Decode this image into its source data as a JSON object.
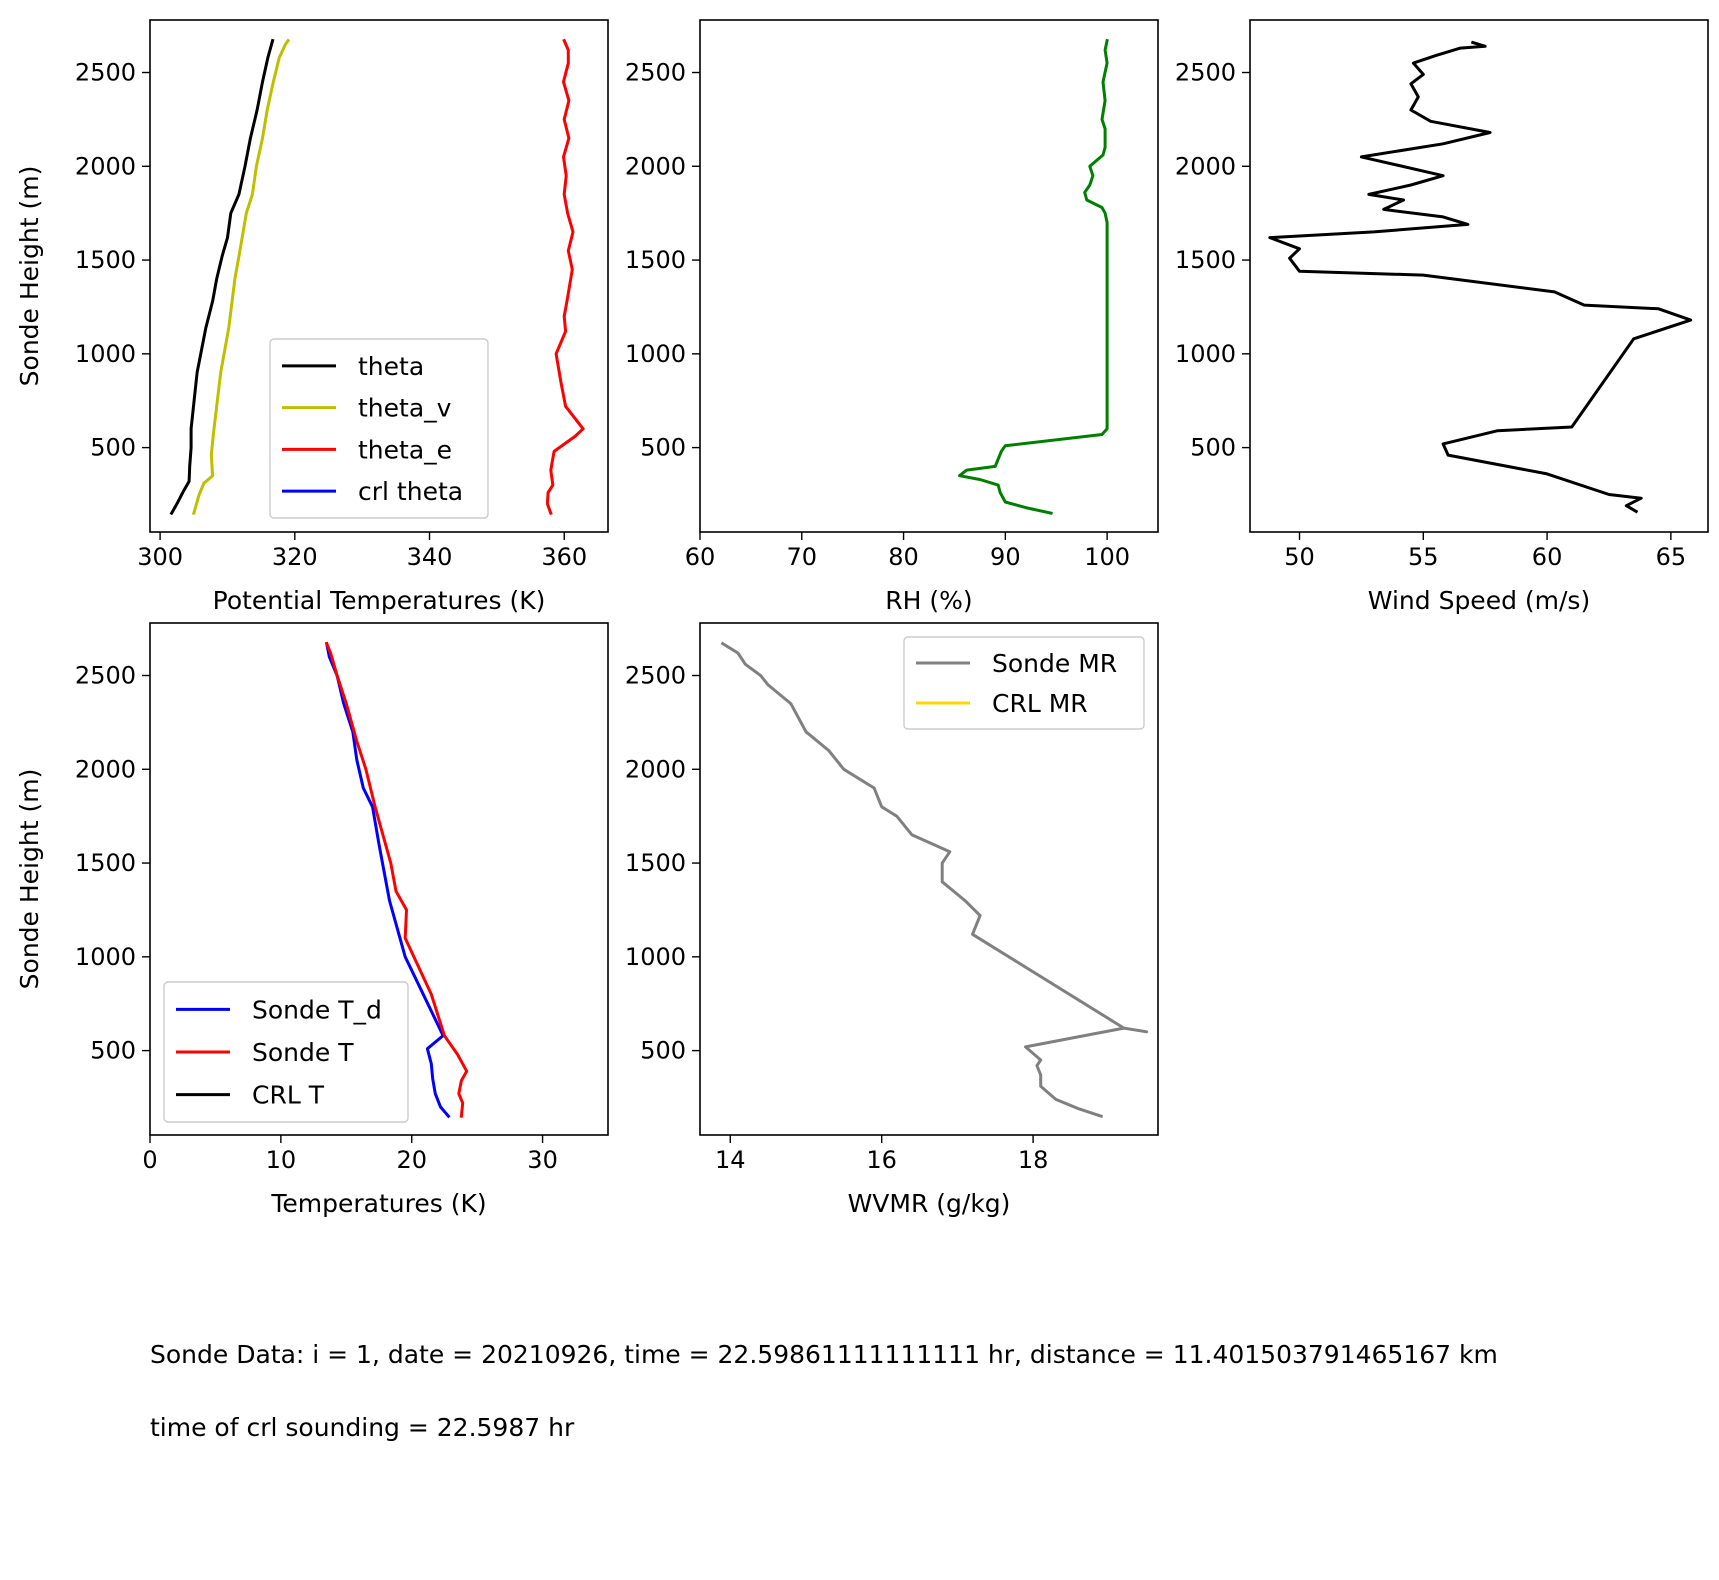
{
  "footer": {
    "line1": "Sonde Data: i = 1, date = 20210926, time = 22.59861111111111 hr, distance = 11.401503791465167 km",
    "line2": "time of crl sounding = 22.5987 hr"
  },
  "chart_data": [
    {
      "id": "potential-temperature",
      "type": "line",
      "xlabel": "Potential Temperatures (K)",
      "ylabel": "Sonde Height (m)",
      "xlim": [
        298.5,
        366.5
      ],
      "ylim": [
        50,
        2780
      ],
      "xticks": [
        300,
        320,
        340,
        360
      ],
      "yticks": [
        500,
        1000,
        1500,
        2000,
        2500
      ],
      "legend": "lower-right",
      "series": [
        {
          "name": "theta",
          "color": "#000000",
          "x": [
            301.7,
            302.5,
            303.5,
            304.3,
            304.4,
            304.6,
            304.6,
            305.5,
            306.8,
            307.8,
            308.4,
            309.2,
            310.0,
            310.5,
            311.7,
            312.6,
            313.4,
            314.4,
            315.2,
            316.0,
            316.7
          ],
          "y": [
            150,
            200,
            270,
            320,
            400,
            500,
            600,
            900,
            1140,
            1280,
            1400,
            1520,
            1620,
            1750,
            1850,
            2000,
            2150,
            2300,
            2450,
            2580,
            2670
          ]
        },
        {
          "name": "theta_v",
          "color": "#bfbf00",
          "x": [
            305.0,
            305.8,
            306.5,
            307.8,
            307.6,
            307.7,
            308.0,
            309.0,
            310.2,
            311.1,
            311.8,
            312.8,
            313.7,
            314.3,
            315.2,
            315.9,
            316.8,
            317.7,
            318.6,
            319.0
          ],
          "y": [
            150,
            250,
            310,
            350,
            460,
            500,
            600,
            900,
            1140,
            1400,
            1540,
            1750,
            1850,
            2000,
            2150,
            2300,
            2450,
            2580,
            2650,
            2670
          ]
        },
        {
          "name": "theta_e",
          "color": "#ff0000",
          "x": [
            358.0,
            357.5,
            357.6,
            358.3,
            358.0,
            358.5,
            361.6,
            362.8,
            360.2,
            359.5,
            358.8,
            360.2,
            360.0,
            360.5,
            361.2,
            360.6,
            361.3,
            360.5,
            360.0,
            360.3,
            359.9,
            360.7,
            360.0,
            360.7,
            359.9,
            360.6,
            360.6,
            360.0
          ],
          "y": [
            150,
            200,
            260,
            300,
            380,
            480,
            560,
            600,
            720,
            850,
            1000,
            1120,
            1200,
            1300,
            1450,
            1550,
            1650,
            1750,
            1850,
            1950,
            2050,
            2150,
            2250,
            2350,
            2450,
            2550,
            2620,
            2670
          ]
        },
        {
          "name": "crl theta",
          "color": "#0000ff",
          "x": [],
          "y": []
        }
      ]
    },
    {
      "id": "relative-humidity",
      "type": "line",
      "xlabel": "RH (%)",
      "ylabel": "",
      "xlim": [
        60,
        105
      ],
      "ylim": [
        50,
        2780
      ],
      "xticks": [
        60,
        70,
        80,
        90,
        100
      ],
      "yticks": [
        500,
        1000,
        1500,
        2000,
        2500
      ],
      "series": [
        {
          "name": "",
          "color": "#008000",
          "x": [
            94.5,
            92.0,
            90.0,
            89.5,
            89.3,
            87.5,
            85.5,
            86.2,
            89.0,
            89.6,
            90.0,
            99.5,
            100.0,
            100.0,
            100.0,
            100.0,
            99.8,
            99.5,
            98.0,
            97.8,
            98.3,
            98.6,
            98.3,
            99.6,
            99.8,
            99.8,
            99.5,
            99.8,
            99.6,
            100.0,
            99.8,
            100.0
          ],
          "y": [
            150,
            180,
            210,
            260,
            300,
            330,
            350,
            380,
            400,
            480,
            510,
            570,
            600,
            1000,
            1500,
            1700,
            1750,
            1780,
            1820,
            1860,
            1900,
            1950,
            2000,
            2060,
            2100,
            2200,
            2250,
            2350,
            2450,
            2550,
            2620,
            2670
          ]
        }
      ]
    },
    {
      "id": "wind-speed",
      "type": "line",
      "xlabel": "Wind Speed (m/s)",
      "ylabel": "",
      "xlim": [
        48.0,
        66.5
      ],
      "ylim": [
        50,
        2780
      ],
      "xticks": [
        50,
        55,
        60,
        65
      ],
      "yticks": [
        500,
        1000,
        1500,
        2000,
        2500
      ],
      "series": [
        {
          "name": "",
          "color": "#000000",
          "x": [
            63.6,
            63.2,
            63.8,
            62.5,
            60.0,
            56.0,
            55.8,
            58.0,
            61.0,
            63.5,
            65.8,
            64.5,
            61.5,
            60.3,
            55.0,
            50.0,
            49.6,
            50.0,
            48.8,
            53.0,
            56.8,
            55.8,
            53.4,
            54.2,
            52.8,
            54.5,
            55.8,
            52.5,
            55.8,
            57.7,
            55.3,
            54.5,
            54.8,
            54.5,
            55.0,
            54.6,
            55.5,
            56.5,
            57.5,
            57.0
          ],
          "y": [
            160,
            190,
            230,
            250,
            360,
            460,
            520,
            590,
            610,
            1080,
            1180,
            1240,
            1260,
            1330,
            1420,
            1440,
            1510,
            1560,
            1620,
            1650,
            1690,
            1730,
            1770,
            1820,
            1850,
            1900,
            1950,
            2050,
            2120,
            2180,
            2240,
            2300,
            2370,
            2440,
            2490,
            2550,
            2590,
            2630,
            2640,
            2660
          ]
        }
      ]
    },
    {
      "id": "temperature",
      "type": "line",
      "xlabel": "Temperatures (K)",
      "ylabel": "Sonde Height (m)",
      "xlim": [
        0,
        35
      ],
      "ylim": [
        50,
        2780
      ],
      "xticks": [
        0,
        10,
        20,
        30
      ],
      "yticks": [
        500,
        1000,
        1500,
        2000,
        2500
      ],
      "legend": "lower-left",
      "series": [
        {
          "name": "Sonde T_d",
          "color": "#0000ff",
          "x": [
            22.8,
            22.2,
            21.8,
            21.6,
            21.5,
            21.2,
            22.4,
            19.5,
            18.3,
            17.5,
            17.0,
            16.3,
            15.8,
            15.5,
            14.8,
            14.3,
            13.7,
            13.5
          ],
          "y": [
            150,
            200,
            270,
            350,
            430,
            510,
            580,
            1000,
            1300,
            1600,
            1800,
            1900,
            2050,
            2200,
            2350,
            2500,
            2600,
            2670
          ]
        },
        {
          "name": "Sonde T",
          "color": "#ff0000",
          "x": [
            23.8,
            23.9,
            23.6,
            23.8,
            24.2,
            23.5,
            22.5,
            21.5,
            19.5,
            19.6,
            18.8,
            18.4,
            17.8,
            17.2,
            16.5,
            15.8,
            15.0,
            14.3,
            13.8,
            13.5
          ],
          "y": [
            150,
            220,
            270,
            340,
            390,
            480,
            580,
            800,
            1100,
            1250,
            1350,
            1500,
            1650,
            1800,
            2000,
            2150,
            2350,
            2500,
            2620,
            2670
          ]
        },
        {
          "name": "CRL T",
          "color": "#000000",
          "x": [],
          "y": []
        }
      ]
    },
    {
      "id": "water-vapor-mixing-ratio",
      "type": "line",
      "xlabel": "WVMR (g/kg)",
      "ylabel": "",
      "xlim": [
        13.6,
        19.65
      ],
      "ylim": [
        50,
        2780
      ],
      "xticks": [
        14,
        16,
        18
      ],
      "yticks": [
        500,
        1000,
        1500,
        2000,
        2500
      ],
      "legend": "upper-right",
      "series": [
        {
          "name": "Sonde MR",
          "color": "#808080",
          "x": [
            18.9,
            18.6,
            18.3,
            18.1,
            18.1,
            18.05,
            18.1,
            17.9,
            19.2,
            19.5,
            19.2,
            17.2,
            17.3,
            17.1,
            16.8,
            16.8,
            16.9,
            16.4,
            16.2,
            16.0,
            15.9,
            15.5,
            15.3,
            15.0,
            14.8,
            14.5,
            14.4,
            14.2,
            14.1,
            13.9
          ],
          "y": [
            150,
            190,
            240,
            310,
            370,
            420,
            450,
            520,
            620,
            600,
            620,
            1120,
            1220,
            1300,
            1400,
            1500,
            1560,
            1650,
            1750,
            1800,
            1900,
            2000,
            2100,
            2200,
            2350,
            2450,
            2500,
            2560,
            2620,
            2670
          ]
        },
        {
          "name": "CRL MR",
          "color": "#ffd700",
          "x": [],
          "y": []
        }
      ]
    }
  ]
}
